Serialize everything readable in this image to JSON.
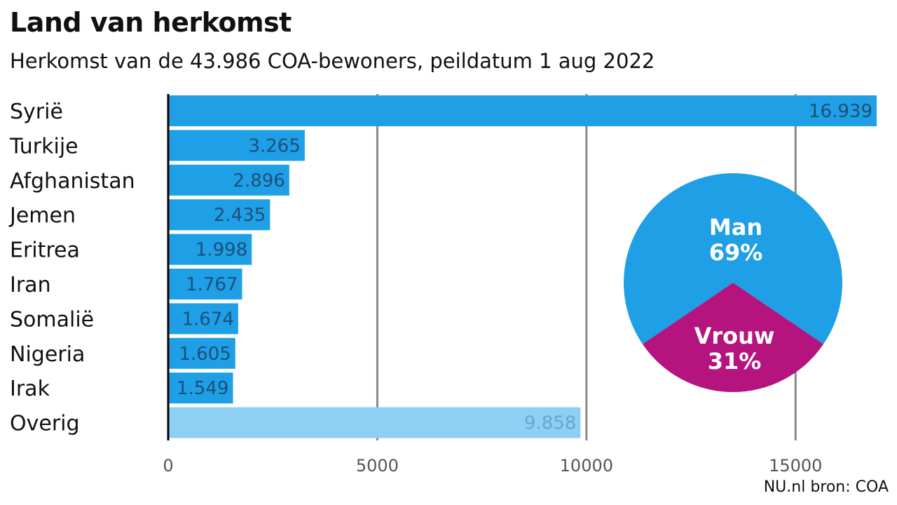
{
  "title": "Land van herkomst",
  "subtitle": "Herkomst van de 43.986 COA-bewoners, peildatum 1 aug 2022",
  "source": "NU.nl bron: COA",
  "colors": {
    "bar": "#1e9fe6",
    "bar_other": "#8ecff4",
    "man": "#1e9fe6",
    "vrouw": "#b5137e",
    "grid": "#8a8a8a",
    "value_text": "#1d4f7a",
    "value_text_other": "#6aa6d2"
  },
  "chart_data": [
    {
      "type": "bar",
      "orientation": "horizontal",
      "categories": [
        "Syrië",
        "Turkije",
        "Afghanistan",
        "Jemen",
        "Eritrea",
        "Iran",
        "Somalië",
        "Nigeria",
        "Irak",
        "Overig"
      ],
      "values": [
        16939,
        3265,
        2896,
        2435,
        1998,
        1767,
        1674,
        1605,
        1549,
        9858
      ],
      "value_labels": [
        "16.939",
        "3.265",
        "2.896",
        "2.435",
        "1.998",
        "1.767",
        "1.674",
        "1.605",
        "1.549",
        "9.858"
      ],
      "xticks": [
        "0",
        "5000",
        "10000",
        "15000"
      ],
      "xtick_values": [
        0,
        5000,
        10000,
        15000
      ],
      "xlim": [
        0,
        16939
      ],
      "grid": true
    },
    {
      "type": "pie",
      "slices": [
        {
          "name": "Man",
          "label": "69%",
          "value": 69
        },
        {
          "name": "Vrouw",
          "label": "31%",
          "value": 31
        }
      ]
    }
  ]
}
